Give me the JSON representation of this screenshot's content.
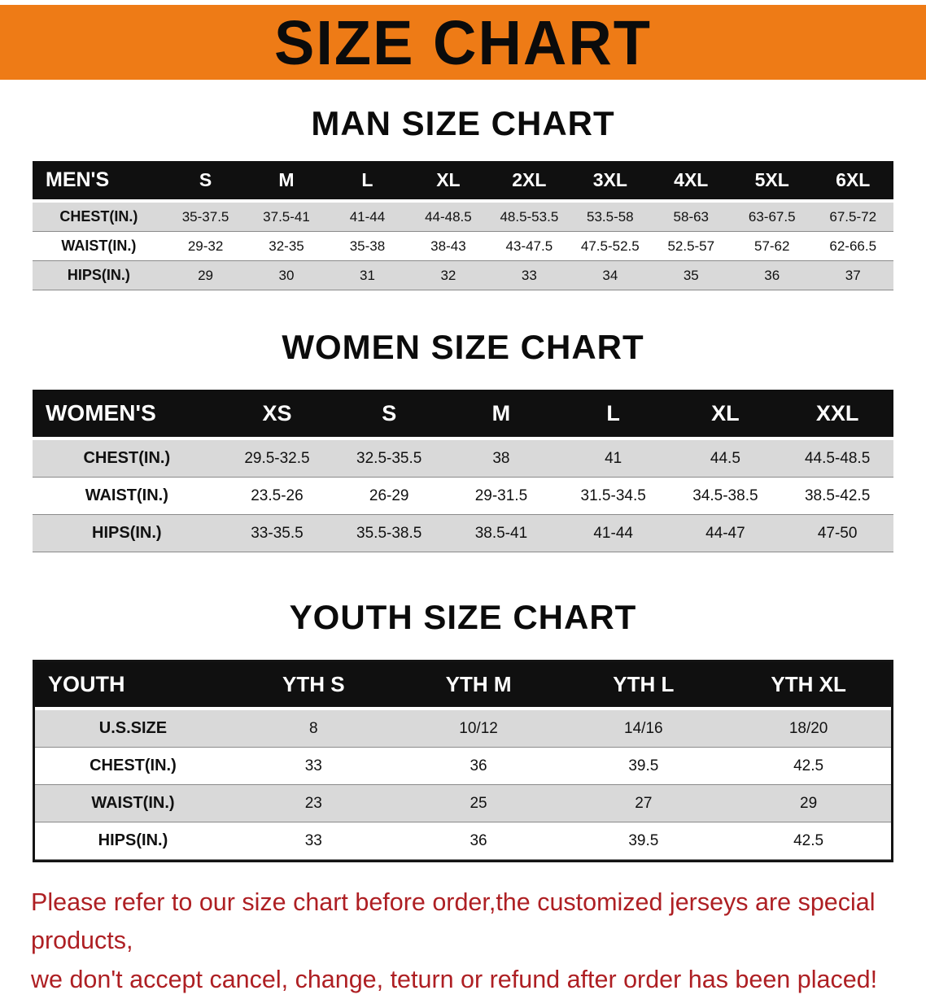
{
  "banner": {
    "title": "SIZE CHART"
  },
  "colors": {
    "banner_bg": "#ee7b16",
    "header_bg": "#101010",
    "row_alt": "#d9d9d9",
    "footer_text": "#ae1f23"
  },
  "sections": [
    {
      "heading": "MAN SIZE CHART",
      "table": {
        "corner": "MEN'S",
        "columns": [
          "S",
          "M",
          "L",
          "XL",
          "2XL",
          "3XL",
          "4XL",
          "5XL",
          "6XL"
        ],
        "rows": [
          {
            "label": "CHEST(IN.)",
            "values": [
              "35-37.5",
              "37.5-41",
              "41-44",
              "44-48.5",
              "48.5-53.5",
              "53.5-58",
              "58-63",
              "63-67.5",
              "67.5-72"
            ]
          },
          {
            "label": "WAIST(IN.)",
            "values": [
              "29-32",
              "32-35",
              "35-38",
              "38-43",
              "43-47.5",
              "47.5-52.5",
              "52.5-57",
              "57-62",
              "62-66.5"
            ]
          },
          {
            "label": "HIPS(IN.)",
            "values": [
              "29",
              "30",
              "31",
              "32",
              "33",
              "34",
              "35",
              "36",
              "37"
            ]
          }
        ]
      }
    },
    {
      "heading": "WOMEN SIZE CHART",
      "table": {
        "corner": "WOMEN'S",
        "columns": [
          "XS",
          "S",
          "M",
          "L",
          "XL",
          "XXL"
        ],
        "rows": [
          {
            "label": "CHEST(IN.)",
            "values": [
              "29.5-32.5",
              "32.5-35.5",
              "38",
              "41",
              "44.5",
              "44.5-48.5"
            ]
          },
          {
            "label": "WAIST(IN.)",
            "values": [
              "23.5-26",
              "26-29",
              "29-31.5",
              "31.5-34.5",
              "34.5-38.5",
              "38.5-42.5"
            ]
          },
          {
            "label": "HIPS(IN.)",
            "values": [
              "33-35.5",
              "35.5-38.5",
              "38.5-41",
              "41-44",
              "44-47",
              "47-50"
            ]
          }
        ]
      }
    },
    {
      "heading": "YOUTH SIZE CHART",
      "table": {
        "corner": "YOUTH",
        "columns": [
          "YTH S",
          "YTH M",
          "YTH L",
          "YTH XL"
        ],
        "rows": [
          {
            "label": "U.S.SIZE",
            "values": [
              "8",
              "10/12",
              "14/16",
              "18/20"
            ]
          },
          {
            "label": "CHEST(IN.)",
            "values": [
              "33",
              "36",
              "39.5",
              "42.5"
            ]
          },
          {
            "label": "WAIST(IN.)",
            "values": [
              "23",
              "25",
              "27",
              "29"
            ]
          },
          {
            "label": "HIPS(IN.)",
            "values": [
              "33",
              "36",
              "39.5",
              "42.5"
            ]
          }
        ]
      }
    }
  ],
  "footer": {
    "lines": [
      "Please refer to our size chart before order,the customized jerseys are special products,",
      "we don't accept cancel, change, teturn or refund after order has been placed!"
    ]
  }
}
